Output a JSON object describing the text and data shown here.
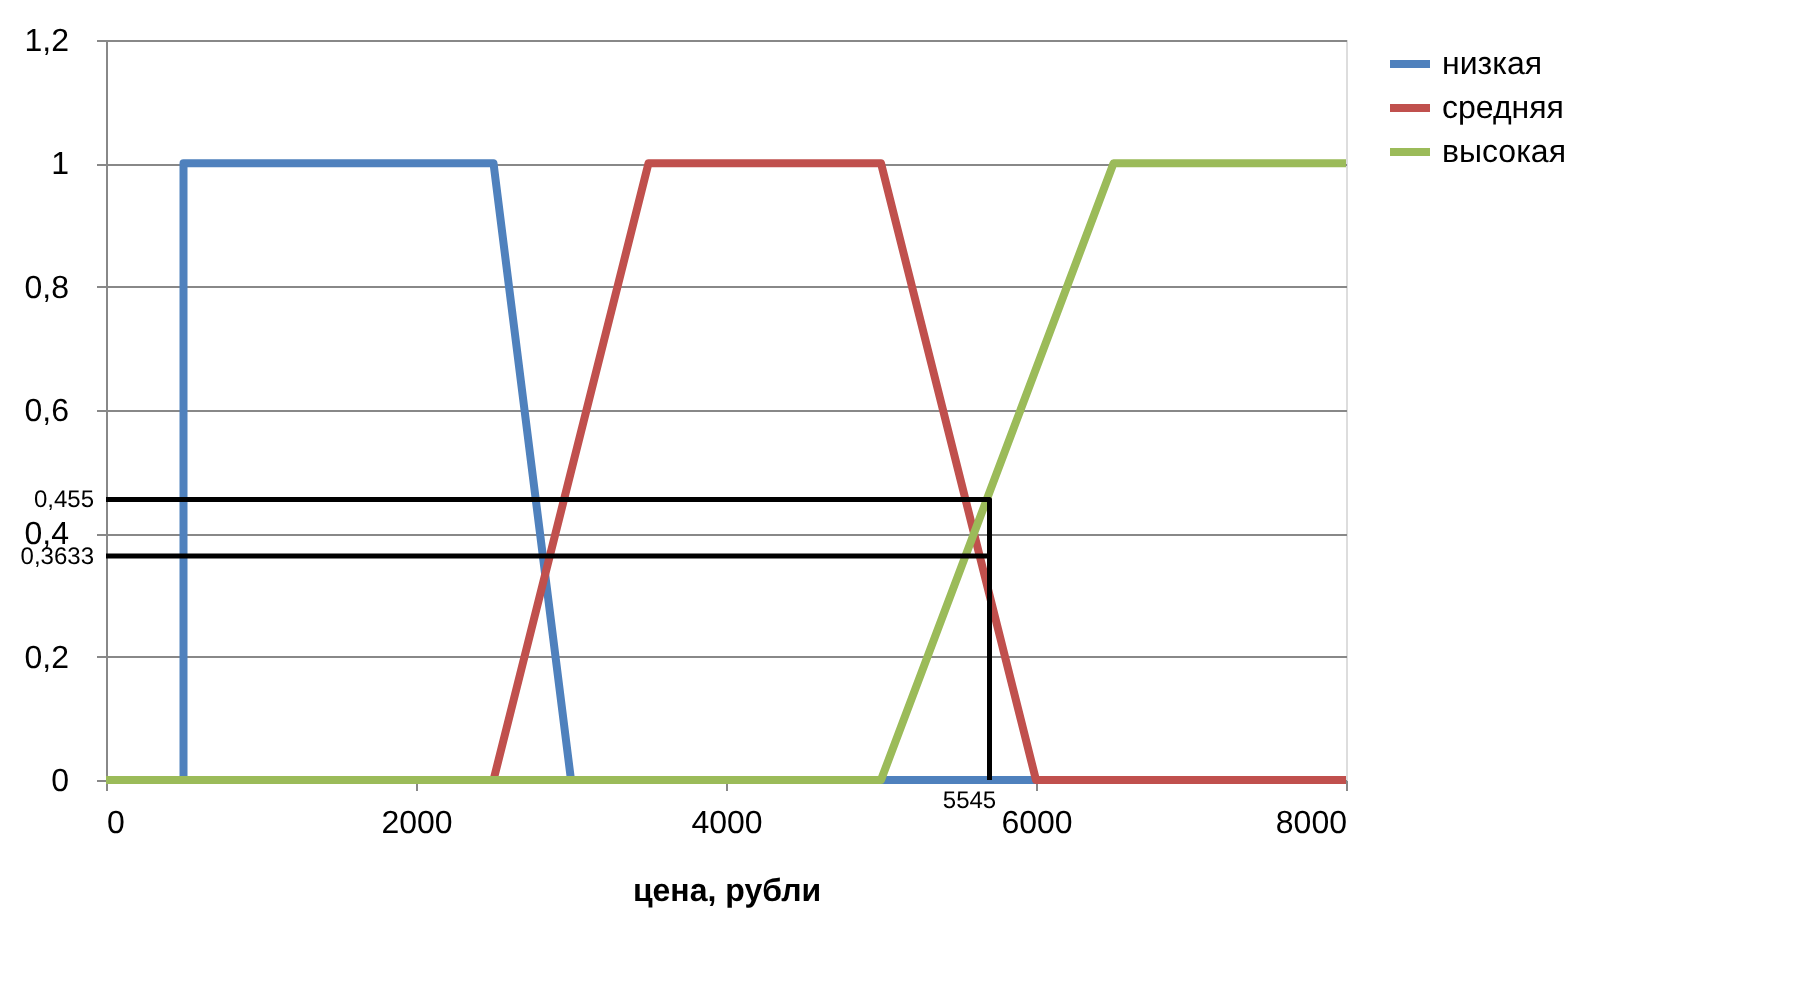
{
  "chart_data": {
    "type": "line",
    "xlabel": "цена, рубли",
    "xlim": [
      0,
      8000
    ],
    "xticks": [
      0,
      2000,
      4000,
      6000,
      8000
    ],
    "ylim": [
      0,
      1.2
    ],
    "yticks": [
      0,
      {
        "value": 0.2,
        "label": "0,2"
      },
      {
        "value": 0.4,
        "label": "0,4"
      },
      {
        "value": 0.6,
        "label": "0,6"
      },
      {
        "value": 0.8,
        "label": "0,8"
      },
      1,
      {
        "value": 1.2,
        "label": "1,2"
      }
    ],
    "grid": "y",
    "legend": "right",
    "line_style": "solid",
    "marker": "none",
    "series": [
      {
        "name": "низкая",
        "color": "#4f81bd",
        "x": [
          0,
          500,
          500,
          2500,
          3000,
          8000
        ],
        "values": [
          0,
          0,
          1,
          1,
          0,
          0
        ]
      },
      {
        "name": "средняя",
        "color": "#c0504d",
        "x": [
          0,
          2500,
          3500,
          5000,
          6000,
          8000
        ],
        "values": [
          0,
          0,
          1,
          1,
          0,
          0
        ]
      },
      {
        "name": "высокая",
        "color": "#9bbb59",
        "x": [
          0,
          5000,
          6500,
          8000
        ],
        "values": [
          0,
          0,
          1,
          1
        ]
      },
      {
        "color": "#000000",
        "x": [
          0,
          5700,
          5700
        ],
        "values": [
          0.455,
          0.455,
          0
        ]
      },
      {
        "color": "#000000",
        "x": [
          0,
          5700
        ],
        "values": [
          0.3633,
          0.3633
        ]
      }
    ],
    "annotations": [
      "0,455",
      "0,3633",
      {
        "text": "5545",
        "x": 5700,
        "y": 0
      }
    ]
  }
}
